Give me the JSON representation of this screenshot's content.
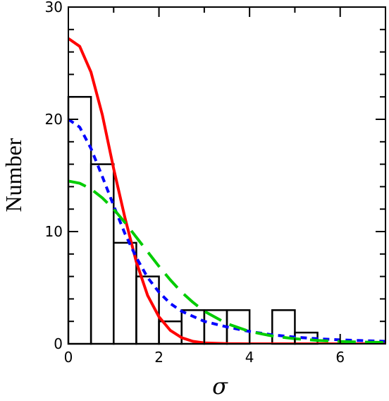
{
  "chart_data": {
    "type": "bar",
    "xlabel": "σ",
    "ylabel": "Number",
    "xlim": [
      0,
      7
    ],
    "ylim": [
      0,
      30
    ],
    "x_ticks": [
      0,
      2,
      4,
      6
    ],
    "y_ticks": [
      0,
      10,
      20,
      30
    ],
    "grid": false,
    "histogram": {
      "bin_width": 0.5,
      "bins": [
        {
          "x0": 0.0,
          "x1": 0.5,
          "count": 22
        },
        {
          "x0": 0.5,
          "x1": 1.0,
          "count": 16
        },
        {
          "x0": 1.0,
          "x1": 1.5,
          "count": 9
        },
        {
          "x0": 1.5,
          "x1": 2.0,
          "count": 6
        },
        {
          "x0": 2.0,
          "x1": 2.5,
          "count": 2
        },
        {
          "x0": 2.5,
          "x1": 3.0,
          "count": 3
        },
        {
          "x0": 3.0,
          "x1": 3.5,
          "count": 3
        },
        {
          "x0": 3.5,
          "x1": 4.0,
          "count": 3
        },
        {
          "x0": 4.0,
          "x1": 4.5,
          "count": 0
        },
        {
          "x0": 4.5,
          "x1": 5.0,
          "count": 3
        },
        {
          "x0": 5.0,
          "x1": 5.5,
          "count": 1
        },
        {
          "x0": 5.5,
          "x1": 6.0,
          "count": 0
        },
        {
          "x0": 6.0,
          "x1": 6.5,
          "count": 0
        },
        {
          "x0": 6.5,
          "x1": 7.0,
          "count": 0
        }
      ]
    },
    "curves": [
      {
        "style": "solid",
        "color": "#ff0000",
        "x": [
          0,
          0.25,
          0.5,
          0.75,
          1.0,
          1.25,
          1.5,
          1.75,
          2.0,
          2.25,
          2.5,
          2.75,
          3.0,
          3.5,
          4.0,
          5.0,
          6.0,
          7.0
        ],
        "y": [
          27.2,
          26.5,
          24.2,
          20.4,
          15.6,
          11.2,
          7.3,
          4.3,
          2.4,
          1.2,
          0.55,
          0.22,
          0.08,
          0.01,
          0,
          0,
          0,
          0
        ]
      },
      {
        "style": "short-dash",
        "color": "#0000ff",
        "x": [
          0,
          0.25,
          0.5,
          0.75,
          1.0,
          1.25,
          1.5,
          1.75,
          2.0,
          2.25,
          2.5,
          3.0,
          3.5,
          4.0,
          4.5,
          5.0,
          5.5,
          6.0,
          6.5,
          7.0
        ],
        "y": [
          20.0,
          19.3,
          17.4,
          14.9,
          12.3,
          9.8,
          7.7,
          5.9,
          4.6,
          3.6,
          2.9,
          2.0,
          1.5,
          1.1,
          0.8,
          0.6,
          0.45,
          0.35,
          0.28,
          0.22
        ]
      },
      {
        "style": "long-dash",
        "color": "#00cc00",
        "x": [
          0,
          0.25,
          0.5,
          0.75,
          1.0,
          1.25,
          1.5,
          1.75,
          2.0,
          2.25,
          2.5,
          2.75,
          3.0,
          3.5,
          4.0,
          4.5,
          5.0,
          5.5,
          6.0,
          6.5,
          7.0
        ],
        "y": [
          14.5,
          14.3,
          13.8,
          13.0,
          12.0,
          10.8,
          9.5,
          8.2,
          6.9,
          5.7,
          4.6,
          3.7,
          2.9,
          1.8,
          1.1,
          0.7,
          0.45,
          0.3,
          0.2,
          0.15,
          0.12
        ]
      }
    ]
  }
}
